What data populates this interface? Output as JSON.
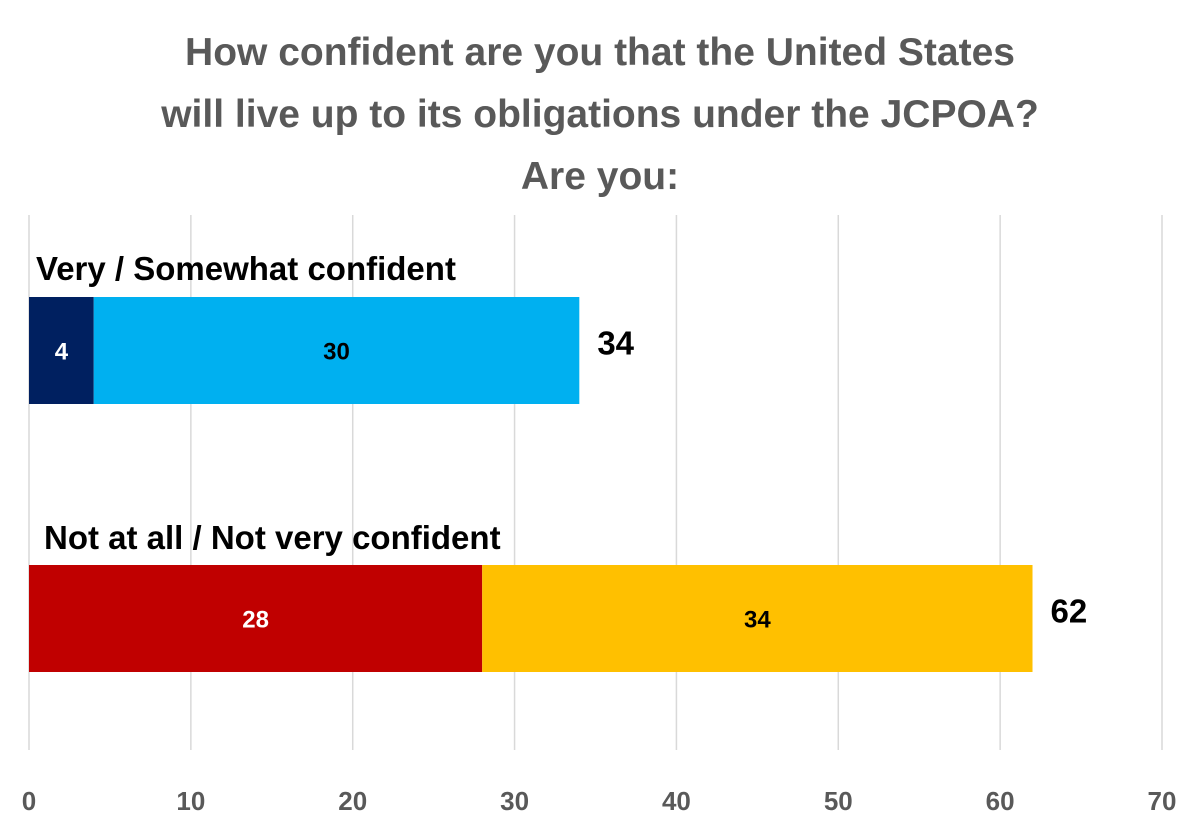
{
  "chart_data": {
    "type": "bar",
    "orientation": "horizontal",
    "stacked": true,
    "title_lines": [
      "How confident are you that the United States",
      "will live up to its obligations under the JCPOA?",
      "Are you:"
    ],
    "categories": [
      "Very / Somewhat confident",
      "Not at all / Not very confident"
    ],
    "bars": [
      {
        "category": "Very / Somewhat confident",
        "total_label": "34",
        "segments": [
          {
            "value": 4,
            "label": "4",
            "color": "#002060",
            "text_color": "#ffffff"
          },
          {
            "value": 30,
            "label": "30",
            "color": "#00B0F0",
            "text_color": "#000000"
          }
        ]
      },
      {
        "category": "Not at all / Not very confident",
        "total_label": "62",
        "segments": [
          {
            "value": 28,
            "label": "28",
            "color": "#C00000",
            "text_color": "#ffffff"
          },
          {
            "value": 34,
            "label": "34",
            "color": "#FFC000",
            "text_color": "#000000"
          }
        ]
      }
    ],
    "xlim": [
      0,
      70
    ],
    "x_ticks": [
      0,
      10,
      20,
      30,
      40,
      50,
      60,
      70
    ],
    "xlabel": "",
    "ylabel": "",
    "grid": true,
    "legend": "none"
  }
}
